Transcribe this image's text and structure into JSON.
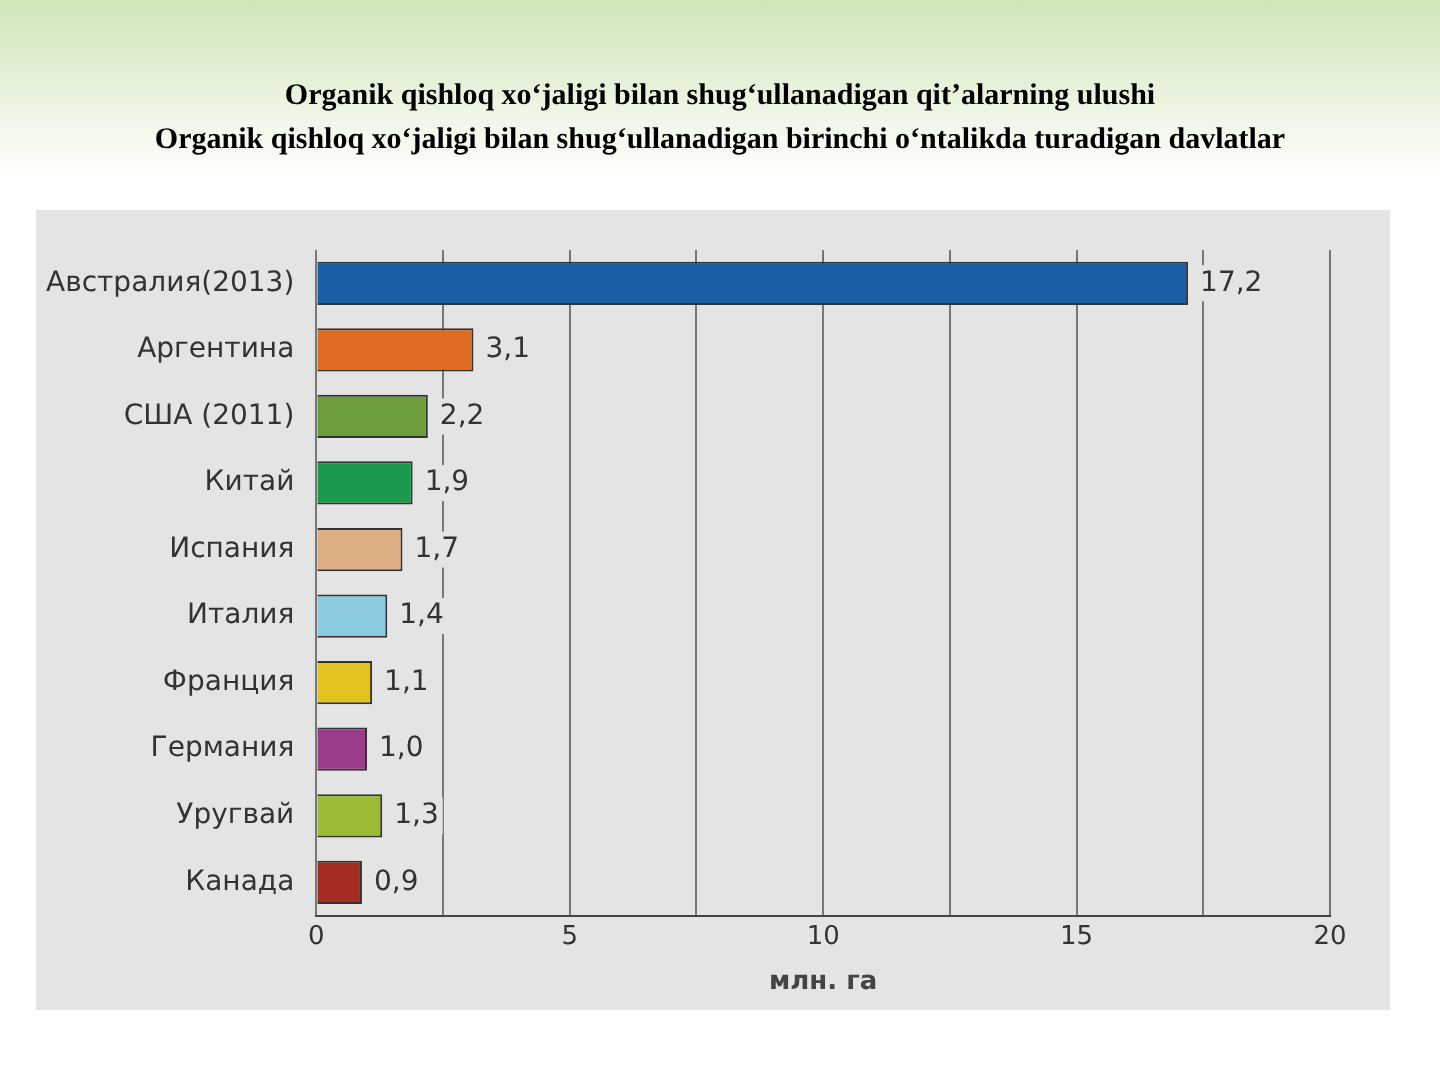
{
  "chart_data": {
    "type": "bar",
    "orientation": "horizontal",
    "title": "Organik qishloq xo‘jaligi bilan shug‘ullanadigan qit’alarning ulushi",
    "subtitle": "Organik qishloq xo‘jaligi bilan shug‘ullanadigan birinchi o‘ntalikda turadigan davlatlar",
    "xlabel": "млн. га",
    "categories": [
      "Австралия(2013)",
      "Аргентина",
      "США (2011)",
      "Китай",
      "Испания",
      "Италия",
      "Франция",
      "Германия",
      "Уругвай",
      "Канада"
    ],
    "values": [
      17.2,
      3.1,
      2.2,
      1.9,
      1.7,
      1.4,
      1.1,
      1.0,
      1.3,
      0.9
    ],
    "value_labels": [
      "17,2",
      "3,1",
      "2,2",
      "1,9",
      "1,7",
      "1,4",
      "1,1",
      "1,0",
      "1,3",
      "0,9"
    ],
    "colors": [
      "#1b5fa6",
      "#e06c23",
      "#6c9c3c",
      "#1c9a4c",
      "#dcae84",
      "#8ccae2",
      "#e3c21f",
      "#9c3c8c",
      "#9cba34",
      "#a62c22"
    ],
    "xlim": [
      0,
      20
    ],
    "xticks": [
      0,
      {
        "value": 2.5,
        "label": null
      },
      5,
      {
        "value": 7.5,
        "label": null
      },
      10,
      {
        "value": 12.5,
        "label": null
      },
      15,
      {
        "value": 17.5,
        "label": null
      },
      20
    ],
    "grid": "x",
    "legend": false
  }
}
